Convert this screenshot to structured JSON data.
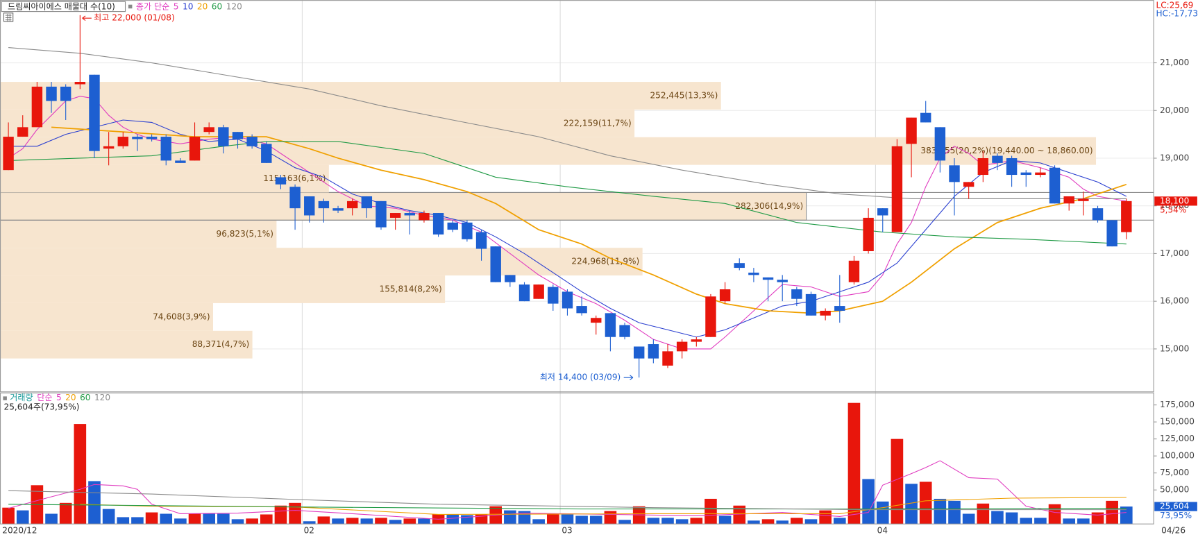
{
  "chart_data": {
    "type": "candlestick",
    "title": "드림씨아이에스 매물대 수(10)",
    "price_legend": "종가 단순",
    "categories": [
      "2020/12",
      null,
      null,
      null,
      null,
      null,
      null,
      null,
      null,
      null,
      null,
      null,
      null,
      null,
      null,
      null,
      null,
      null,
      null,
      null,
      null,
      "02",
      null,
      null,
      null,
      null,
      null,
      null,
      null,
      null,
      null,
      null,
      null,
      null,
      null,
      null,
      null,
      null,
      null,
      "03",
      null,
      null,
      null,
      null,
      null,
      null,
      null,
      null,
      null,
      null,
      null,
      null,
      null,
      null,
      null,
      null,
      null,
      null,
      null,
      null,
      null,
      "04",
      null,
      null,
      null,
      null,
      null,
      null,
      null,
      null,
      null,
      null,
      null,
      null,
      null,
      null,
      null,
      null,
      null
    ],
    "open": [
      18750,
      19450,
      19650,
      20500,
      20500,
      20550,
      20750,
      19200,
      19250,
      19450,
      19450,
      19450,
      18950,
      18950,
      19550,
      19650,
      19550,
      19450,
      19300,
      18600,
      18400,
      18200,
      18100,
      17950,
      17950,
      18200,
      18100,
      17750,
      17850,
      17700,
      17850,
      17650,
      17650,
      17450,
      17150,
      16550,
      16350,
      16050,
      16300,
      16200,
      15900,
      15550,
      15750,
      15500,
      15050,
      15100,
      14650,
      14950,
      15150,
      15250,
      16000,
      16800,
      16600,
      16500,
      16450,
      16250,
      16150,
      15700,
      15900,
      16400,
      17050,
      17950,
      17450,
      19300,
      19950,
      19650,
      18850,
      18400,
      18650,
      19050,
      19000,
      18700,
      18650,
      18800,
      18050,
      18100,
      17950,
      17700,
      17450
    ],
    "high": [
      19750,
      19900,
      20600,
      20600,
      20550,
      22000,
      20750,
      19550,
      19550,
      19500,
      19500,
      19500,
      19000,
      19750,
      19750,
      19700,
      19550,
      19500,
      19350,
      18650,
      18450,
      18200,
      18150,
      18000,
      18150,
      18200,
      18100,
      17850,
      17900,
      17900,
      17850,
      17700,
      17700,
      17500,
      17150,
      16550,
      16400,
      16350,
      16350,
      16250,
      16100,
      15700,
      15750,
      15550,
      15050,
      15200,
      15100,
      15200,
      15250,
      16150,
      16400,
      16900,
      16700,
      16500,
      16550,
      16300,
      16200,
      15850,
      16550,
      16950,
      17950,
      17950,
      19400,
      19850,
      20200,
      19650,
      19000,
      18500,
      19150,
      19100,
      19050,
      18750,
      18800,
      18850,
      18200,
      18300,
      18000,
      17700,
      18150
    ],
    "low": [
      18750,
      19450,
      19650,
      19950,
      19800,
      20450,
      19000,
      18850,
      19200,
      19150,
      19350,
      18850,
      18900,
      18950,
      19500,
      19100,
      19200,
      19200,
      18900,
      18350,
      17500,
      17650,
      17650,
      17850,
      17800,
      17750,
      17500,
      17500,
      17400,
      17650,
      17350,
      17450,
      17250,
      16850,
      16400,
      16300,
      16000,
      16050,
      15800,
      15700,
      15700,
      15300,
      14950,
      15200,
      14400,
      14700,
      14600,
      14800,
      15050,
      15250,
      15950,
      16650,
      16400,
      16000,
      16000,
      15900,
      15700,
      15600,
      15550,
      16350,
      17000,
      17450,
      17450,
      18600,
      19750,
      18700,
      17800,
      18150,
      18500,
      18750,
      18400,
      18400,
      18600,
      18050,
      17900,
      17800,
      17650,
      17150,
      17300
    ],
    "close": [
      19450,
      19650,
      20500,
      20200,
      20200,
      20600,
      19150,
      19250,
      19450,
      19400,
      19400,
      18950,
      18900,
      19450,
      19650,
      19250,
      19400,
      19250,
      18900,
      18450,
      17950,
      17800,
      17950,
      17900,
      18100,
      17950,
      17550,
      17850,
      17800,
      17850,
      17400,
      17500,
      17300,
      17100,
      16400,
      16400,
      16000,
      16350,
      15950,
      15850,
      15750,
      15650,
      15250,
      15250,
      14800,
      14800,
      14950,
      15150,
      15200,
      16100,
      16250,
      16700,
      16550,
      16450,
      16400,
      16050,
      15700,
      15800,
      15800,
      16850,
      17750,
      17800,
      19250,
      19850,
      19750,
      18950,
      18500,
      18500,
      19000,
      18900,
      18650,
      18650,
      18700,
      18050,
      18200,
      18150,
      17700,
      17150,
      18100
    ],
    "up_color": "#e8160c",
    "down_color": "#1d5fd1",
    "ylim": [
      14100,
      22300
    ],
    "yticks": [
      {
        "value": 15000,
        "label": "15,000"
      },
      {
        "value": 16000,
        "label": "16,000"
      },
      {
        "value": 17000,
        "label": "17,000"
      },
      {
        "value": 18000,
        "label": "18,000"
      },
      {
        "value": 19000,
        "label": "19,000"
      },
      {
        "value": 20000,
        "label": "20,000"
      },
      {
        "value": 21000,
        "label": "21,000"
      }
    ],
    "grid": true,
    "moving_averages": [
      {
        "name": "5",
        "color": "#e03cc0",
        "x": [
          0,
          1,
          2,
          3,
          4,
          5,
          6,
          7,
          8,
          9,
          10,
          12,
          14,
          16,
          18,
          19,
          21,
          23,
          25,
          27,
          29,
          31,
          33,
          35,
          37,
          39,
          41,
          43,
          45,
          47,
          49,
          50,
          52,
          54,
          56,
          58,
          60,
          61,
          62,
          63,
          64,
          65,
          66,
          67,
          68,
          70,
          72,
          74,
          75,
          76,
          77,
          78
        ],
        "values": [
          19000,
          19200,
          19600,
          19900,
          20200,
          20300,
          20250,
          19900,
          19650,
          19500,
          19400,
          19300,
          19400,
          19450,
          19300,
          19100,
          18700,
          18300,
          18000,
          17950,
          17800,
          17700,
          17450,
          17000,
          16550,
          16200,
          15950,
          15600,
          15200,
          15000,
          15000,
          15250,
          15800,
          16350,
          16300,
          16100,
          16200,
          16550,
          17200,
          17650,
          18400,
          19000,
          19250,
          19100,
          18850,
          18950,
          18800,
          18600,
          18350,
          18200,
          18150,
          18100
        ]
      },
      {
        "name": "10",
        "color": "#2a3fd0",
        "x": [
          0,
          2,
          4,
          6,
          8,
          10,
          12,
          14,
          16,
          18,
          20,
          22,
          24,
          26,
          28,
          30,
          32,
          34,
          36,
          38,
          40,
          42,
          44,
          46,
          48,
          50,
          52,
          54,
          56,
          58,
          60,
          62,
          64,
          66,
          68,
          70,
          72,
          74,
          76,
          78
        ],
        "values": [
          19250,
          19250,
          19500,
          19650,
          19800,
          19750,
          19500,
          19350,
          19400,
          19150,
          18800,
          18600,
          18250,
          18050,
          17900,
          17800,
          17650,
          17350,
          17000,
          16600,
          16200,
          15850,
          15550,
          15400,
          15250,
          15400,
          15650,
          15900,
          16000,
          16200,
          16400,
          16800,
          17500,
          18200,
          18700,
          18950,
          18900,
          18700,
          18500,
          18200
        ]
      },
      {
        "name": "20",
        "color": "#f0a000",
        "x": [
          3,
          8,
          13,
          18,
          21,
          23,
          26,
          29,
          32,
          34,
          37,
          40,
          42,
          45,
          48,
          50,
          53,
          56,
          58,
          61,
          63,
          66,
          69,
          72,
          75,
          78
        ],
        "values": [
          19650,
          19550,
          19450,
          19450,
          19200,
          19000,
          18750,
          18550,
          18300,
          18050,
          17500,
          17200,
          16900,
          16550,
          16150,
          15950,
          15800,
          15750,
          15800,
          16000,
          16400,
          17100,
          17650,
          17950,
          18150,
          18450
        ]
      },
      {
        "name": "60",
        "color": "#1f9a45",
        "x": [
          0,
          5,
          10,
          15,
          18,
          23,
          29,
          34,
          39,
          45,
          50,
          55,
          61,
          66,
          71,
          78
        ],
        "values": [
          18950,
          19000,
          19050,
          19250,
          19350,
          19350,
          19100,
          18600,
          18400,
          18200,
          18050,
          17650,
          17450,
          17350,
          17300,
          17200
        ]
      },
      {
        "name": "120",
        "color": "#8a8a8a",
        "x": [
          0,
          5,
          10,
          15,
          21,
          26,
          31,
          37,
          42,
          47,
          53,
          58,
          63,
          69,
          74,
          78
        ],
        "values": [
          21320,
          21200,
          21000,
          20750,
          20450,
          20100,
          19800,
          19450,
          19050,
          18750,
          18450,
          18250,
          18150,
          18150,
          18150,
          18150
        ]
      }
    ],
    "lc_label": "LC:25,69",
    "hc_label": "HC:-17,73",
    "high_annotation": "최고 22,000 (01/08)",
    "low_annotation": "최저 14,400 (03/09)",
    "last_close_label": "18,100",
    "last_change_label": "5,54%",
    "last_date": "04/26",
    "profile": {
      "bins": [
        14800,
        15380,
        15960,
        16540,
        17120,
        17700,
        18280,
        18860,
        19440,
        20020,
        20600
      ],
      "values": [
        88371,
        74608,
        155814,
        224968,
        96823,
        282306,
        115163,
        383755,
        222159,
        252445
      ],
      "value_labels": [
        "88,371(4,7%)",
        "74,608(3,9%)",
        "155,814(8,2%)",
        "224,968(11,9%)",
        "96,823(5,1%)",
        "282,306(14,9%)",
        "115,163(6,1%)",
        "383,755(20,2%)(19,440.00 ~ 18,860.00)",
        "222,159(11,7%)",
        "252,445(13,3%)"
      ],
      "color": "#f7e5cf",
      "label_color": "#6b4513"
    },
    "volume": {
      "label": "거래량",
      "ma_label": "단순",
      "summary": "25,604주(73,95%)",
      "values": [
        24000,
        20000,
        57000,
        15000,
        31000,
        147000,
        63000,
        22000,
        10000,
        10000,
        17000,
        15000,
        8000,
        15000,
        15000,
        15000,
        7000,
        8000,
        14000,
        27000,
        31000,
        4000,
        11000,
        8000,
        9000,
        8000,
        9000,
        6000,
        8000,
        8000,
        14000,
        14000,
        13000,
        14000,
        26000,
        20000,
        19000,
        7000,
        14000,
        14000,
        12000,
        12000,
        19000,
        6000,
        26000,
        9000,
        9000,
        7000,
        9000,
        37000,
        12000,
        27000,
        5000,
        7000,
        5000,
        9000,
        7000,
        20000,
        9000,
        178000,
        66000,
        33000,
        125000,
        59000,
        62000,
        37000,
        34000,
        15000,
        30000,
        19000,
        17000,
        9000,
        9000,
        29000,
        8000,
        8000,
        17000,
        34000,
        25604
      ],
      "ylim": [
        0,
        192000
      ],
      "yticks": [
        {
          "value": 50000,
          "label": "50,000"
        },
        {
          "value": 75000,
          "label": "75,000"
        },
        {
          "value": 100000,
          "label": "100,000"
        },
        {
          "value": 125000,
          "label": "125,000"
        },
        {
          "value": 150000,
          "label": "150,000"
        },
        {
          "value": 175000,
          "label": "175,000"
        }
      ],
      "last_label": "25,604",
      "last_change_label": "73,95%",
      "moving_averages": [
        {
          "name": "5",
          "color": "#e03cc0",
          "x": [
            0,
            3,
            5,
            6,
            8,
            9,
            10,
            12,
            16,
            20,
            24,
            30,
            36,
            42,
            48,
            54,
            58,
            60,
            61,
            63,
            64,
            65,
            67,
            69,
            71,
            73,
            76,
            78
          ],
          "values": [
            23000,
            40000,
            51000,
            58000,
            56000,
            51000,
            29000,
            15000,
            16000,
            20000,
            15000,
            7000,
            16000,
            14000,
            12000,
            17000,
            11000,
            17000,
            57000,
            74000,
            83000,
            93000,
            68000,
            66000,
            26000,
            17000,
            13000,
            17000
          ]
        },
        {
          "name": "20",
          "color": "#f0a000",
          "x": [
            5,
            10,
            20,
            30,
            45,
            58,
            61,
            64,
            70,
            78
          ],
          "values": [
            29000,
            26000,
            25000,
            14000,
            15000,
            15000,
            24000,
            34000,
            38000,
            39000
          ]
        },
        {
          "name": "60",
          "color": "#1f9a45",
          "x": [
            0,
            20,
            40,
            60,
            78
          ],
          "values": [
            29000,
            25000,
            22000,
            22000,
            23000
          ]
        },
        {
          "name": "120",
          "color": "#8a8a8a",
          "x": [
            0,
            10,
            20,
            30,
            45,
            60,
            78
          ],
          "values": [
            49000,
            44000,
            36000,
            29000,
            24000,
            21000,
            21000
          ]
        }
      ]
    }
  }
}
